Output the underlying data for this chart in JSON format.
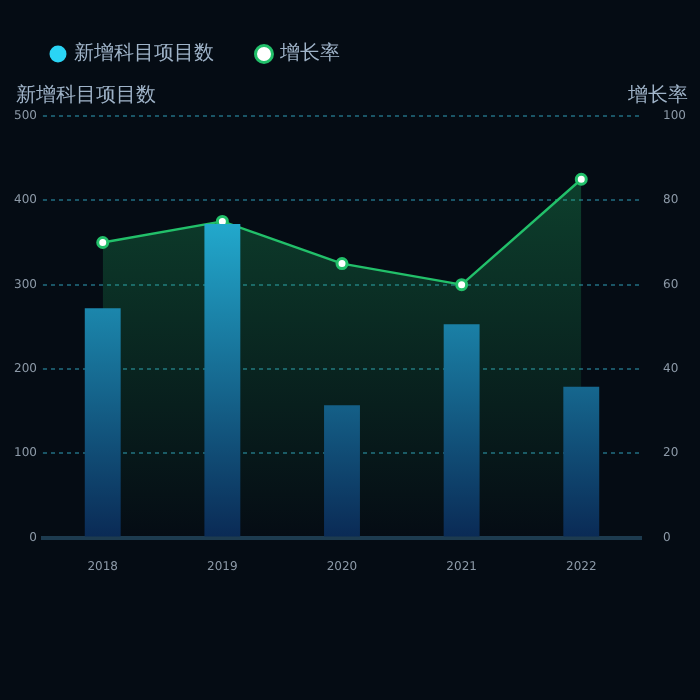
{
  "chart_data": {
    "type": "bar",
    "categories": [
      "2018",
      "2019",
      "2020",
      "2021",
      "2022"
    ],
    "series": [
      {
        "name": "新增科目项目数",
        "color": "#2ad4f5",
        "values": [
          272,
          372,
          157,
          253,
          179
        ]
      },
      {
        "name": "增长率",
        "type": "area",
        "axis": "y2",
        "color": "#22c06a",
        "values": [
          70,
          75,
          65,
          60,
          85
        ]
      }
    ],
    "ylabel": "新增科目项目数",
    "y2label": "增长率",
    "ylim": [
      0,
      500
    ],
    "yticks": [
      0,
      100,
      200,
      300,
      400,
      500
    ],
    "y2lim": [
      0,
      100
    ],
    "y2ticks": [
      0,
      20,
      40,
      60,
      80,
      100
    ],
    "grid": "y",
    "legend": "top left",
    "marker": "circle"
  }
}
